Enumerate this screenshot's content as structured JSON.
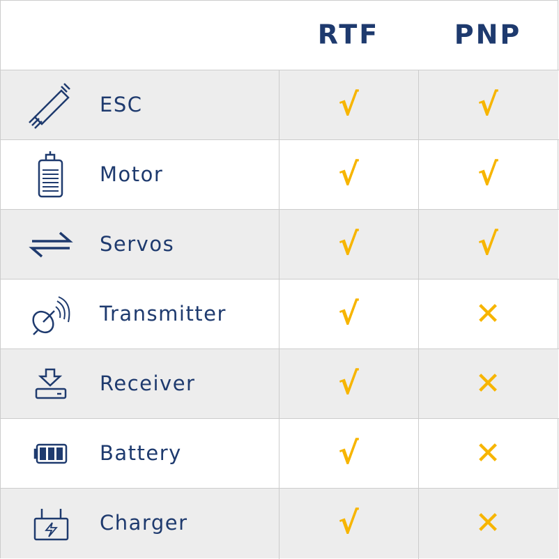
{
  "table": {
    "columns": [
      "RTF",
      "PNP"
    ],
    "rows": [
      {
        "name": "ESC",
        "rtf": "√",
        "pnp": "√"
      },
      {
        "name": "Motor",
        "rtf": "√",
        "pnp": "√"
      },
      {
        "name": "Servos",
        "rtf": "√",
        "pnp": "√"
      },
      {
        "name": "Transmitter",
        "rtf": "√",
        "pnp": "✕"
      },
      {
        "name": "Receiver",
        "rtf": "√",
        "pnp": "✕"
      },
      {
        "name": "Battery",
        "rtf": "√",
        "pnp": "✕"
      },
      {
        "name": "Charger",
        "rtf": "√",
        "pnp": "✕"
      }
    ]
  }
}
